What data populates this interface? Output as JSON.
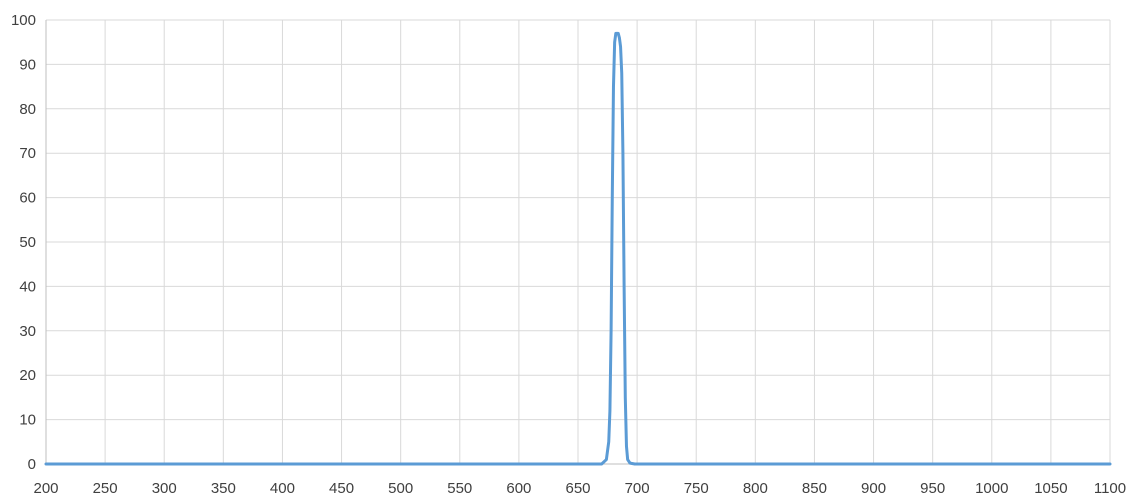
{
  "chart_data": {
    "type": "line",
    "title": "",
    "xlabel": "",
    "ylabel": "",
    "xlim": [
      200,
      1100
    ],
    "ylim": [
      0,
      100
    ],
    "x_ticks": [
      200,
      250,
      300,
      350,
      400,
      450,
      500,
      550,
      600,
      650,
      700,
      750,
      800,
      850,
      900,
      950,
      1000,
      1050,
      1100
    ],
    "y_ticks": [
      0,
      10,
      20,
      30,
      40,
      50,
      60,
      70,
      80,
      90,
      100
    ],
    "grid": true,
    "legend": "none",
    "series": [
      {
        "color": "#5b9bd5",
        "x": [
          200,
          600,
          670,
          674,
          676,
          677,
          678,
          679,
          680,
          681,
          682,
          683,
          684,
          685,
          686,
          687,
          688,
          689,
          690,
          691,
          692,
          694,
          698,
          750,
          1100
        ],
        "y": [
          0,
          0,
          0,
          1,
          5,
          12,
          30,
          60,
          85,
          95,
          97,
          97,
          97,
          96,
          94,
          88,
          70,
          40,
          15,
          4,
          1,
          0.2,
          0,
          0,
          0
        ]
      }
    ]
  }
}
